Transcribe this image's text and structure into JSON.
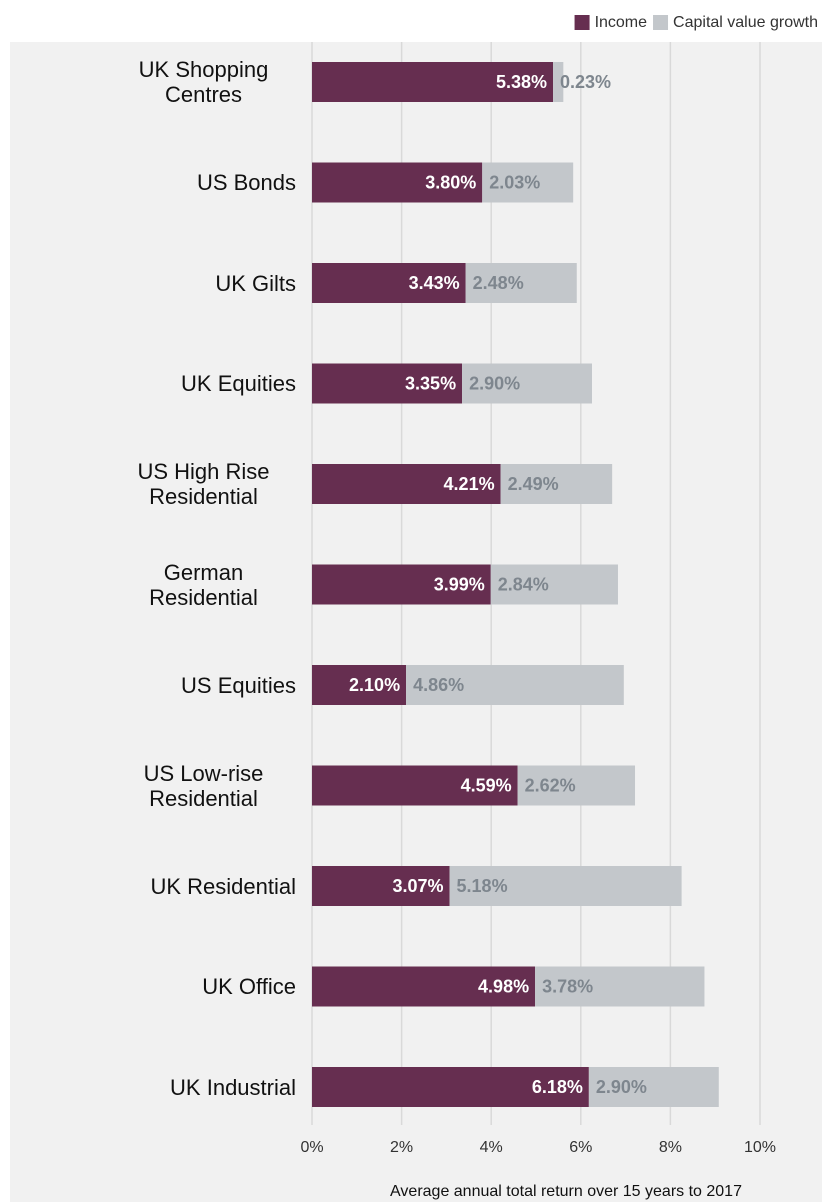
{
  "chart_data": {
    "type": "stacked-bar-horizontal",
    "xlabel": "Average annual total return over 15 years to 2017",
    "categories": [
      "UK Shopping Centres",
      "US Bonds",
      "UK Gilts",
      "UK Equities",
      "US High Rise Residential",
      "German Residential",
      "US Equities",
      "US Low-rise Residential",
      "UK Residential",
      "UK Office",
      "UK Industrial"
    ],
    "series": [
      {
        "name": "Income",
        "color": "#662e50",
        "values": [
          5.38,
          3.8,
          3.43,
          3.35,
          4.21,
          3.99,
          2.1,
          4.59,
          3.07,
          4.98,
          6.18
        ],
        "value_labels": [
          "5.38%",
          "3.80%",
          "3.43%",
          "3.35%",
          "4.21%",
          "3.99%",
          "2.10%",
          "4.59%",
          "3.07%",
          "4.98%",
          "6.18%"
        ]
      },
      {
        "name": "Capital value growth",
        "color": "#c3c7cb",
        "values": [
          0.23,
          2.03,
          2.48,
          2.9,
          2.49,
          2.84,
          4.86,
          2.62,
          5.18,
          3.78,
          2.9
        ],
        "value_labels": [
          "0.23%",
          "2.03%",
          "2.48%",
          "2.90%",
          "2.49%",
          "2.84%",
          "4.86%",
          "2.62%",
          "5.18%",
          "3.78%",
          "2.90%"
        ]
      }
    ],
    "xlim": [
      0,
      10
    ],
    "xticks": [
      {
        "value": 0,
        "label": "0%"
      },
      {
        "value": 2,
        "label": "2%"
      },
      {
        "value": 4,
        "label": "4%"
      },
      {
        "value": 6,
        "label": "6%"
      },
      {
        "value": 8,
        "label": "8%"
      },
      {
        "value": 10,
        "label": "10%"
      }
    ],
    "grid": true,
    "legend": "top-right"
  }
}
